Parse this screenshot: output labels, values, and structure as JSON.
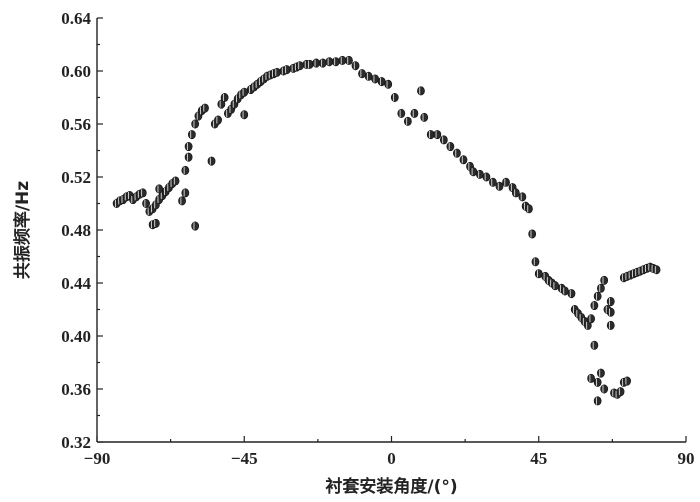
{
  "chart_data": {
    "type": "scatter",
    "xlabel": "衬套安装角度/(°)",
    "ylabel": "共振频率/Hz",
    "xlim": [
      -90,
      90
    ],
    "ylim": [
      0.32,
      0.64
    ],
    "xticks": [
      "−90",
      "−45",
      "0",
      "45",
      "90"
    ],
    "xtick_values": [
      -90,
      -45,
      0,
      45,
      90
    ],
    "yticks": [
      "0.32",
      "0.36",
      "0.40",
      "0.44",
      "0.48",
      "0.52",
      "0.56",
      "0.60",
      "0.64"
    ],
    "ytick_values": [
      0.32,
      0.36,
      0.4,
      0.44,
      0.48,
      0.52,
      0.56,
      0.6,
      0.64
    ],
    "grid": false,
    "series": [
      {
        "points": [
          [
            -84,
            0.5
          ],
          [
            -83,
            0.502
          ],
          [
            -82,
            0.503
          ],
          [
            -81,
            0.505
          ],
          [
            -80,
            0.506
          ],
          [
            -79,
            0.503
          ],
          [
            -78,
            0.505
          ],
          [
            -77,
            0.507
          ],
          [
            -76,
            0.508
          ],
          [
            -75,
            0.5
          ],
          [
            -74,
            0.494
          ],
          [
            -73,
            0.496
          ],
          [
            -72,
            0.499
          ],
          [
            -71,
            0.503
          ],
          [
            -70,
            0.506
          ],
          [
            -69,
            0.509
          ],
          [
            -68,
            0.512
          ],
          [
            -67,
            0.515
          ],
          [
            -66,
            0.517
          ],
          [
            -73,
            0.484
          ],
          [
            -72,
            0.485
          ],
          [
            -71,
            0.511
          ],
          [
            -64,
            0.502
          ],
          [
            -63,
            0.508
          ],
          [
            -63,
            0.525
          ],
          [
            -62,
            0.535
          ],
          [
            -62,
            0.543
          ],
          [
            -61,
            0.552
          ],
          [
            -60,
            0.56
          ],
          [
            -59,
            0.566
          ],
          [
            -58,
            0.57
          ],
          [
            -57,
            0.572
          ],
          [
            -60,
            0.483
          ],
          [
            -55,
            0.532
          ],
          [
            -54,
            0.56
          ],
          [
            -53,
            0.563
          ],
          [
            -52,
            0.575
          ],
          [
            -51,
            0.58
          ],
          [
            -50,
            0.568
          ],
          [
            -49,
            0.571
          ],
          [
            -48,
            0.575
          ],
          [
            -47,
            0.579
          ],
          [
            -46,
            0.582
          ],
          [
            -45,
            0.584
          ],
          [
            -45,
            0.567
          ],
          [
            -43,
            0.586
          ],
          [
            -42,
            0.588
          ],
          [
            -41,
            0.59
          ],
          [
            -40,
            0.592
          ],
          [
            -39,
            0.594
          ],
          [
            -38,
            0.596
          ],
          [
            -37,
            0.597
          ],
          [
            -36,
            0.598
          ],
          [
            -35,
            0.599
          ],
          [
            -33,
            0.6
          ],
          [
            -32,
            0.601
          ],
          [
            -30,
            0.602
          ],
          [
            -29,
            0.603
          ],
          [
            -28,
            0.604
          ],
          [
            -26,
            0.605
          ],
          [
            -25,
            0.605
          ],
          [
            -23,
            0.606
          ],
          [
            -21,
            0.606
          ],
          [
            -19,
            0.607
          ],
          [
            -17,
            0.607
          ],
          [
            -15,
            0.608
          ],
          [
            -13,
            0.608
          ],
          [
            -11,
            0.604
          ],
          [
            -9,
            0.598
          ],
          [
            -7,
            0.596
          ],
          [
            -5,
            0.594
          ],
          [
            -3,
            0.592
          ],
          [
            -1,
            0.59
          ],
          [
            1,
            0.58
          ],
          [
            3,
            0.568
          ],
          [
            5,
            0.562
          ],
          [
            7,
            0.568
          ],
          [
            9,
            0.585
          ],
          [
            10,
            0.565
          ],
          [
            12,
            0.552
          ],
          [
            14,
            0.552
          ],
          [
            16,
            0.548
          ],
          [
            18,
            0.543
          ],
          [
            20,
            0.538
          ],
          [
            22,
            0.533
          ],
          [
            24,
            0.528
          ],
          [
            25,
            0.524
          ],
          [
            27,
            0.522
          ],
          [
            29,
            0.52
          ],
          [
            31,
            0.516
          ],
          [
            33,
            0.513
          ],
          [
            35,
            0.516
          ],
          [
            37,
            0.512
          ],
          [
            38,
            0.508
          ],
          [
            40,
            0.505
          ],
          [
            41,
            0.498
          ],
          [
            42,
            0.496
          ],
          [
            43,
            0.477
          ],
          [
            44,
            0.456
          ],
          [
            45,
            0.447
          ],
          [
            47,
            0.445
          ],
          [
            48,
            0.442
          ],
          [
            49,
            0.44
          ],
          [
            50,
            0.438
          ],
          [
            52,
            0.436
          ],
          [
            53,
            0.434
          ],
          [
            55,
            0.432
          ],
          [
            56,
            0.42
          ],
          [
            57,
            0.417
          ],
          [
            58,
            0.414
          ],
          [
            59,
            0.411
          ],
          [
            60,
            0.408
          ],
          [
            61,
            0.413
          ],
          [
            62,
            0.423
          ],
          [
            63,
            0.43
          ],
          [
            64,
            0.436
          ],
          [
            65,
            0.442
          ],
          [
            66,
            0.42
          ],
          [
            67,
            0.418
          ],
          [
            67,
            0.426
          ],
          [
            61,
            0.368
          ],
          [
            62,
            0.393
          ],
          [
            63,
            0.365
          ],
          [
            63,
            0.351
          ],
          [
            64,
            0.372
          ],
          [
            65,
            0.36
          ],
          [
            67,
            0.408
          ],
          [
            68,
            0.357
          ],
          [
            69,
            0.356
          ],
          [
            70,
            0.358
          ],
          [
            71,
            0.365
          ],
          [
            72,
            0.366
          ],
          [
            71,
            0.444
          ],
          [
            72,
            0.445
          ],
          [
            73,
            0.446
          ],
          [
            74,
            0.447
          ],
          [
            75,
            0.448
          ],
          [
            76,
            0.449
          ],
          [
            77,
            0.45
          ],
          [
            78,
            0.451
          ],
          [
            79,
            0.452
          ],
          [
            80,
            0.451
          ],
          [
            81,
            0.45
          ]
        ]
      }
    ]
  }
}
